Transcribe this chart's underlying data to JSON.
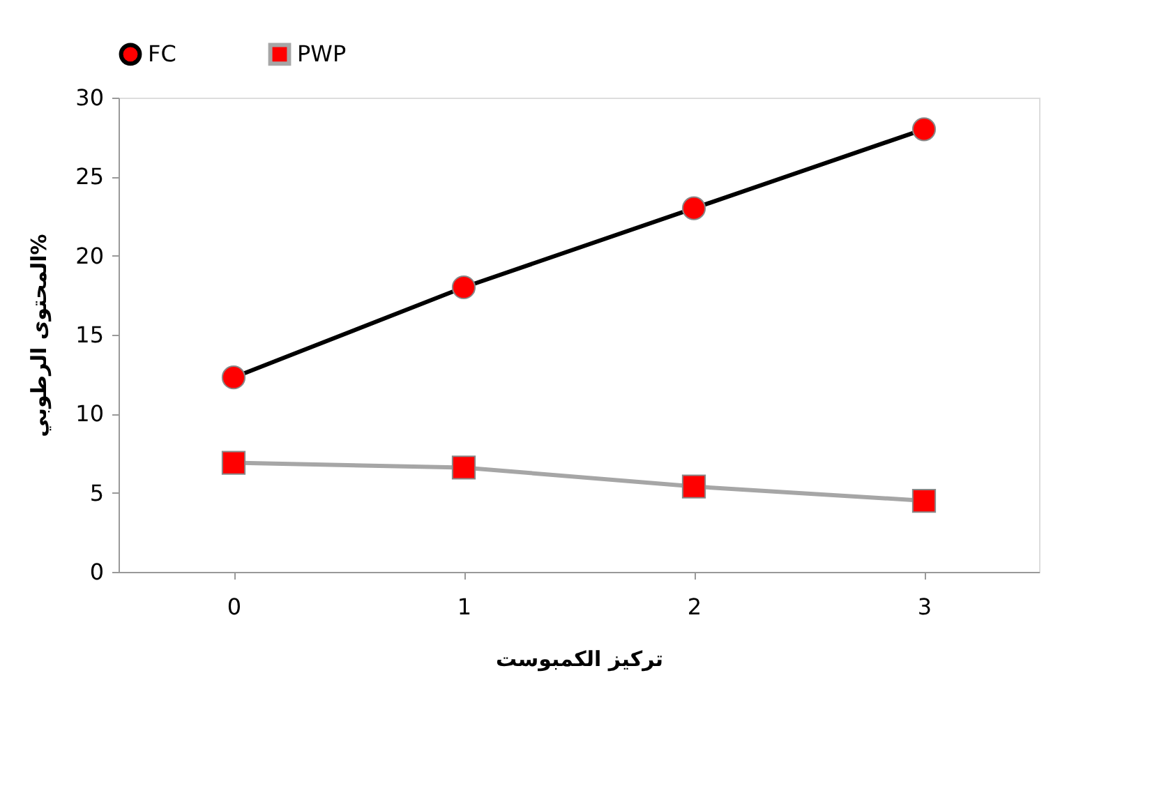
{
  "chart_data": {
    "type": "line",
    "xlabel": "تركيز الكمبوست",
    "ylabel": "المحتوى الرطوبي%",
    "categories": [
      "0",
      "1",
      "2",
      "3"
    ],
    "series": [
      {
        "name": "FC",
        "color": "#000000",
        "marker": "circle",
        "colors": [
          "#ff0000",
          "#ff0000",
          "#ff0000",
          "#ff0000"
        ],
        "values": [
          12.3,
          18.0,
          23.0,
          28.0
        ]
      },
      {
        "name": "PWP",
        "color": "#a6a6a6",
        "marker": "square",
        "colors": [
          "#ff0000",
          "#ff0000",
          "#ff0000",
          "#ff0000"
        ],
        "values": [
          6.9,
          6.6,
          5.4,
          4.5
        ]
      }
    ],
    "ylim": [
      0,
      30
    ],
    "yticks": [
      0,
      5,
      10,
      15,
      20,
      25,
      30
    ],
    "grid": false,
    "legend": "top",
    "line_style": "solid"
  }
}
